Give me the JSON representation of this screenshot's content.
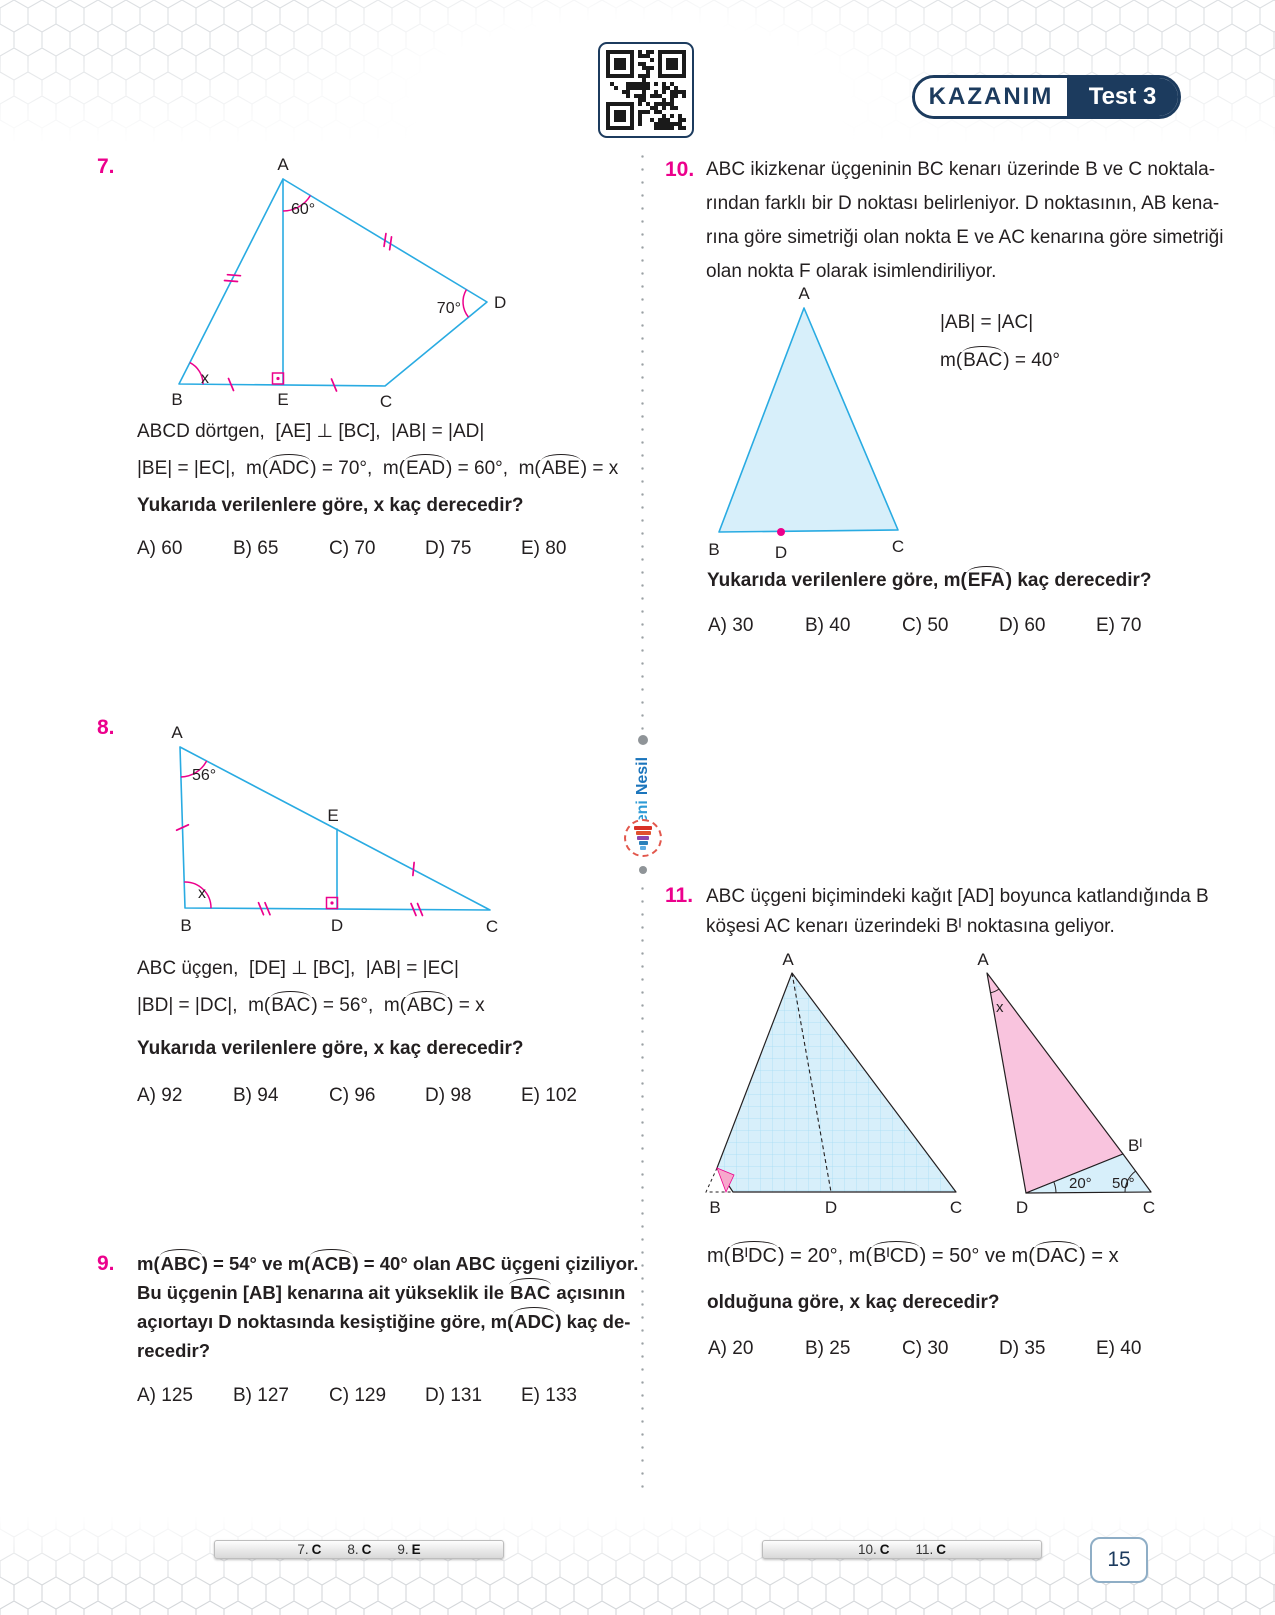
{
  "header": {
    "kazanim": "KAZANIM",
    "test": "Test 3"
  },
  "brand": {
    "yeni": "Yeni",
    "nesil": "Nesil"
  },
  "q7": {
    "number": "7.",
    "diagram": {
      "A": "A",
      "B": "B",
      "C": "C",
      "D": "D",
      "E": "E",
      "angle_a": "60°",
      "angle_d": "70°",
      "angle_b": "x"
    },
    "line1": "ABCD dörtgen,  [AE] ⊥ [BC],  |AB| = |AD|",
    "line2": {
      "p1": "|BE| = |EC|,  m(",
      "h1": "ADC",
      "p2": ") = 70°,  m(",
      "h2": "EAD",
      "p3": ") = 60°,  m(",
      "h3": "ABE",
      "p4": ") = x"
    },
    "question": "Yukarıda verilenlere göre, x kaç derecedir?",
    "options": [
      "A) 60",
      "B) 65",
      "C) 70",
      "D) 75",
      "E) 80"
    ]
  },
  "q8": {
    "number": "8.",
    "diagram": {
      "A": "A",
      "B": "B",
      "C": "C",
      "D": "D",
      "E": "E",
      "angle_a": "56°",
      "angle_b": "x"
    },
    "line1": "ABC üçgen,  [DE] ⊥ [BC],  |AB| = |EC|",
    "line2": {
      "p1": "|BD| = |DC|,  m(",
      "h1": "BAC",
      "p2": ") = 56°,  m(",
      "h2": "ABC",
      "p3": ") = x"
    },
    "question": "Yukarıda verilenlere göre, x kaç derecedir?",
    "options": [
      "A) 92",
      "B) 94",
      "C) 96",
      "D) 98",
      "E) 102"
    ]
  },
  "q9": {
    "number": "9.",
    "l1": {
      "p1": "m(",
      "h1": "ABC",
      "p2": ") = 54° ve m(",
      "h2": "ACB",
      "p3": ") = 40° olan ABC üçgeni çiziliyor."
    },
    "l2": {
      "p1": "Bu üçgenin [AB] kenarına ait yükseklik ile ",
      "h1": "BAC",
      "p2": " açısının"
    },
    "l3": {
      "p1": "açıortayı D noktasında kesiştiğine göre, m(",
      "h1": "ADC",
      "p2": ") kaç de-"
    },
    "l4": "recedir?",
    "options": [
      "A) 125",
      "B) 127",
      "C) 129",
      "D) 131",
      "E) 133"
    ]
  },
  "q10": {
    "number": "10.",
    "lines": [
      "ABC ikizkenar üçgeninin BC kenarı üzerinde B ve C noktala-",
      "rından farklı bir D noktası belirleniyor. D noktasının, AB kena-",
      "rına göre simetriği olan nokta E ve AC kenarına göre simetriği",
      "olan nokta F olarak isimlendiriliyor."
    ],
    "diagram": {
      "A": "A",
      "B": "B",
      "C": "C",
      "D": "D"
    },
    "given1": "|AB| = |AC|",
    "given2": {
      "p1": "m(",
      "h1": "BAC",
      "p2": ") = 40°"
    },
    "question": {
      "p1": "Yukarıda verilenlere göre, m(",
      "h1": "EFA",
      "p2": ") kaç derecedir?"
    },
    "options": [
      "A) 30",
      "B) 40",
      "C) 50",
      "D) 60",
      "E) 70"
    ]
  },
  "q11": {
    "number": "11.",
    "lines": [
      "ABC üçgeni biçimindeki kağıt [AD] boyunca katlandığında B",
      "köşesi AC kenarı üzerindeki Bᴵ noktasına geliyor."
    ],
    "diagram": {
      "A": "A",
      "B": "B",
      "C": "C",
      "D": "D",
      "Bp": "Bᴵ",
      "angle_d": "20°",
      "angle_c": "50°",
      "angle_a": "x"
    },
    "equation": {
      "p1": "m(",
      "h1": "BᴵDC",
      "p2": ") = 20°, m(",
      "h2": "BᴵCD",
      "p3": ") = 50° ve m(",
      "h3": "DAC",
      "p4": ") = x"
    },
    "question": "olduğuna göre, x kaç derecedir?",
    "options": [
      "A) 20",
      "B) 25",
      "C) 30",
      "D) 35",
      "E) 40"
    ]
  },
  "footer": {
    "left": [
      {
        "n": "7.",
        "a": "C"
      },
      {
        "n": "8.",
        "a": "C"
      },
      {
        "n": "9.",
        "a": "E"
      }
    ],
    "right": [
      {
        "n": "10.",
        "a": "C"
      },
      {
        "n": "11.",
        "a": "C"
      }
    ],
    "page": "15"
  }
}
